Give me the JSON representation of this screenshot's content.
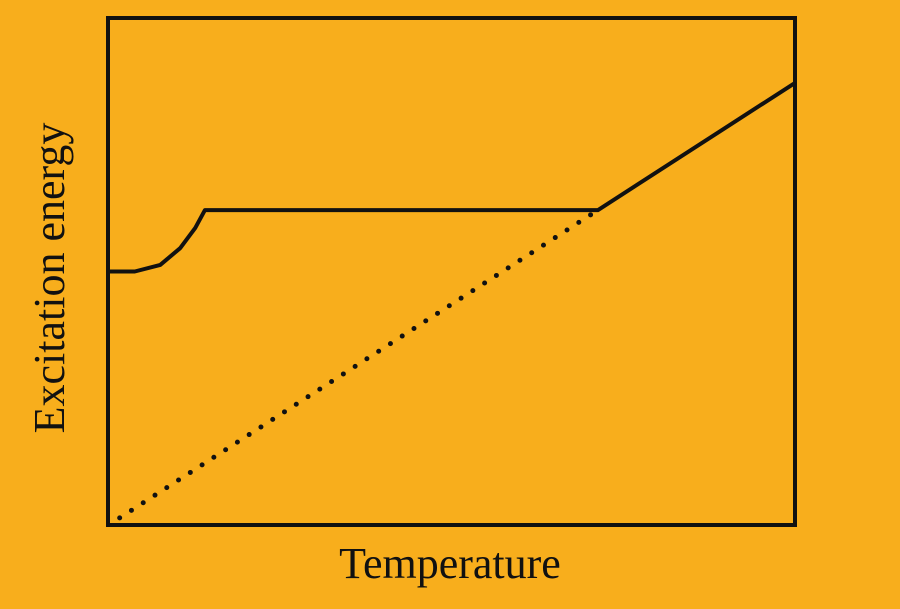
{
  "chart_data": {
    "type": "line",
    "x_label": "Temperature",
    "y_label": "Excitation energy",
    "xlim": [
      0,
      100
    ],
    "ylim": [
      0,
      100
    ],
    "series": [
      {
        "color": "#111111",
        "style": "solid",
        "x": [
          0,
          3.9,
          7.6,
          10.5,
          12.7,
          14.1,
          71.3,
          100
        ],
        "values": [
          50,
          50,
          51.3,
          54.6,
          58.6,
          62.1,
          62.1,
          87.2
        ]
      },
      {
        "color": "#111111",
        "style": "dotted",
        "x": [
          1.7,
          71.3
        ],
        "values": [
          1.4,
          62.1
        ]
      }
    ]
  }
}
